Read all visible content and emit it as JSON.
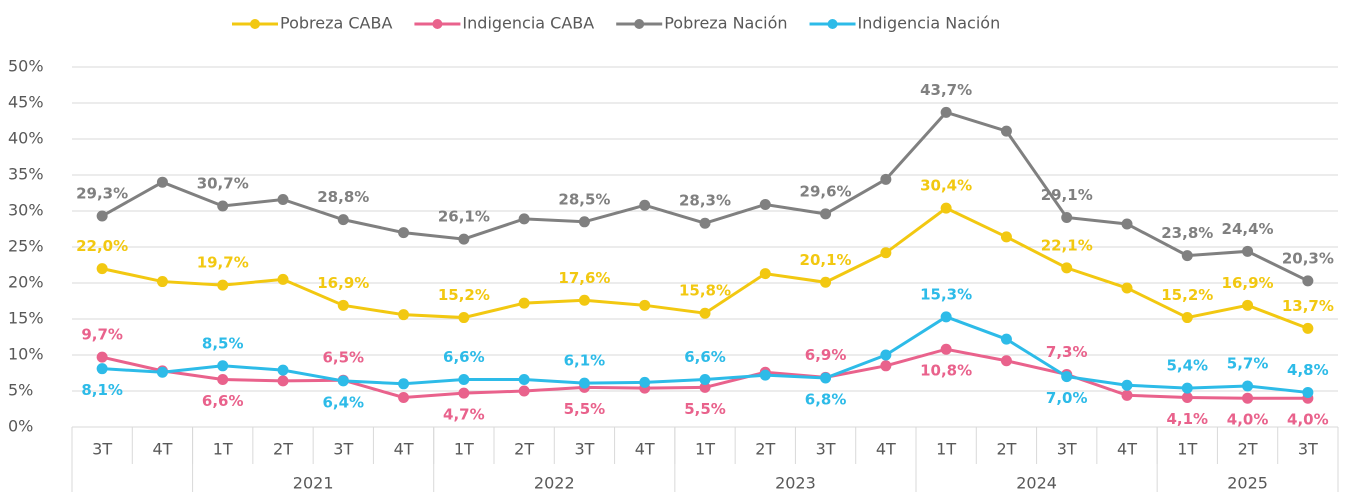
{
  "chart_data": {
    "type": "line",
    "categories": [
      "3T",
      "4T",
      "1T",
      "2T",
      "3T",
      "4T",
      "1T",
      "2T",
      "3T",
      "4T",
      "1T",
      "2T",
      "3T",
      "4T",
      "1T",
      "2T",
      "3T",
      "4T",
      "1T",
      "2T",
      "3T"
    ],
    "year_labels": [
      null,
      "2021",
      "2022",
      "2023",
      "2024",
      "2025"
    ],
    "ylim": [
      0,
      50
    ],
    "yticks": [
      {
        "value": 0,
        "label": "0%"
      },
      {
        "value": 5,
        "label": "5%"
      },
      {
        "value": 10,
        "label": "10%"
      },
      {
        "value": 15,
        "label": "15%"
      },
      {
        "value": 20,
        "label": "20%"
      },
      {
        "value": 25,
        "label": "25%"
      },
      {
        "value": 30,
        "label": "30%"
      },
      {
        "value": 35,
        "label": "35%"
      },
      {
        "value": 40,
        "label": "40%"
      },
      {
        "value": 45,
        "label": "45%"
      },
      {
        "value": 50,
        "label": "50%"
      }
    ],
    "grid": true,
    "legend": "top",
    "series": [
      {
        "name": "Pobreza CABA",
        "color": "#f2c811",
        "values": [
          22.0,
          20.2,
          19.7,
          20.5,
          16.9,
          15.6,
          15.2,
          17.2,
          17.6,
          16.9,
          15.8,
          21.3,
          20.1,
          24.2,
          30.4,
          26.4,
          22.1,
          19.3,
          15.2,
          16.9,
          13.7
        ],
        "value_labels": [
          "22,0%",
          null,
          "19,7%",
          null,
          "16,9%",
          null,
          "15,2%",
          null,
          "17,6%",
          null,
          "15,8%",
          null,
          "20,1%",
          null,
          "30,4%",
          null,
          "22,1%",
          null,
          "15,2%",
          "16,9%",
          "13,7%"
        ]
      },
      {
        "name": "Indigencia CABA",
        "color": "#e9628c",
        "values": [
          9.7,
          7.8,
          6.6,
          6.4,
          6.5,
          4.1,
          4.7,
          5.0,
          5.5,
          5.4,
          5.5,
          7.6,
          6.9,
          8.5,
          10.8,
          9.2,
          7.3,
          4.4,
          4.1,
          4.0,
          4.0
        ],
        "value_labels": [
          "9,7%",
          null,
          "6,6%",
          null,
          "6,5%",
          null,
          "4,7%",
          null,
          "5,5%",
          null,
          "5,5%",
          null,
          "6,9%",
          null,
          "10,8%",
          null,
          "7,3%",
          null,
          "4,1%",
          "4,0%",
          "4,0%"
        ]
      },
      {
        "name": "Pobreza Nación",
        "color": "#808080",
        "values": [
          29.3,
          34.0,
          30.7,
          31.6,
          28.8,
          27.0,
          26.1,
          28.9,
          28.5,
          30.8,
          28.3,
          30.9,
          29.6,
          34.4,
          43.7,
          41.1,
          29.1,
          28.2,
          23.8,
          24.4,
          20.3
        ],
        "value_labels": [
          "29,3%",
          null,
          "30,7%",
          null,
          "28,8%",
          null,
          "26,1%",
          null,
          "28,5%",
          null,
          "28,3%",
          null,
          "29,6%",
          null,
          "43,7%",
          null,
          "29,1%",
          null,
          "23,8%",
          "24,4%",
          "20,3%"
        ]
      },
      {
        "name": "Indigencia Nación",
        "color": "#2dbbe8",
        "values": [
          8.1,
          7.6,
          8.5,
          7.9,
          6.4,
          6.0,
          6.6,
          6.6,
          6.1,
          6.2,
          6.6,
          7.2,
          6.8,
          10.0,
          15.3,
          12.2,
          7.0,
          5.8,
          5.4,
          5.7,
          4.8
        ],
        "value_labels": [
          "8,1%",
          null,
          "8,5%",
          null,
          "6,4%",
          null,
          "6,6%",
          null,
          "6,1%",
          null,
          "6,6%",
          null,
          "6,8%",
          null,
          "15,3%",
          null,
          "7,0%",
          null,
          "5,4%",
          "5,7%",
          "4,8%"
        ]
      }
    ]
  }
}
